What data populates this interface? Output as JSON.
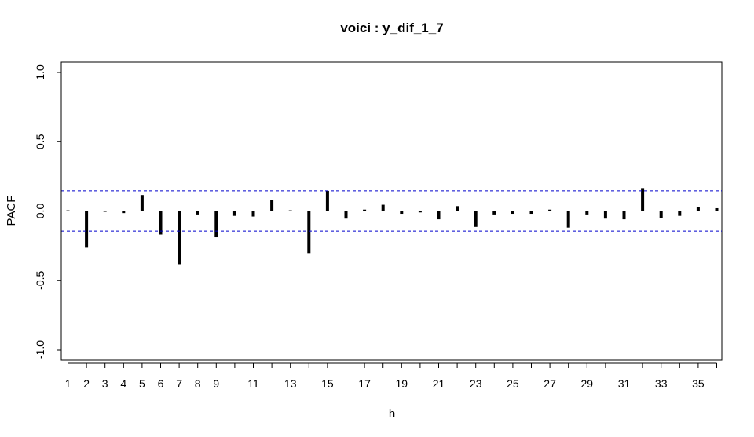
{
  "chart_data": {
    "type": "bar",
    "title": "voici : y_dif_1_7",
    "xlabel": "h",
    "ylabel": "PACF",
    "ylim": [
      -1.0,
      1.0
    ],
    "xlim": [
      1,
      36
    ],
    "y_ticks": [
      "-1.0",
      "-0.5",
      "0.0",
      "0.5",
      "1.0"
    ],
    "x_ticks": [
      "1",
      "2",
      "3",
      "4",
      "5",
      "6",
      "7",
      "8",
      "9",
      "11",
      "13",
      "15",
      "17",
      "19",
      "21",
      "23",
      "25",
      "27",
      "29",
      "31",
      "33",
      "35"
    ],
    "lags": [
      1,
      2,
      3,
      4,
      5,
      6,
      7,
      8,
      9,
      10,
      11,
      12,
      13,
      14,
      15,
      16,
      17,
      18,
      19,
      20,
      21,
      22,
      23,
      24,
      25,
      26,
      27,
      28,
      29,
      30,
      31,
      32,
      33,
      34,
      35,
      36
    ],
    "values": [
      0.005,
      -0.26,
      0.0,
      -0.015,
      0.115,
      -0.17,
      -0.385,
      -0.025,
      -0.19,
      -0.035,
      -0.04,
      0.08,
      0.005,
      -0.305,
      0.145,
      -0.055,
      0.01,
      0.045,
      -0.02,
      -0.01,
      -0.06,
      0.035,
      -0.115,
      -0.025,
      -0.02,
      -0.02,
      0.01,
      -0.12,
      -0.025,
      -0.055,
      -0.06,
      0.165,
      -0.05,
      -0.035,
      0.03,
      0.02
    ],
    "confidence_bounds": [
      0.145,
      -0.145
    ],
    "confidence_color": "#0000cc",
    "bar_color": "#000000",
    "grid": false
  }
}
